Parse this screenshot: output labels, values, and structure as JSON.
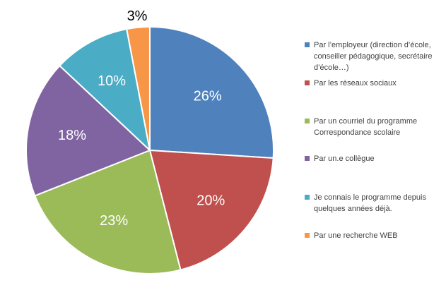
{
  "chart_data": {
    "type": "pie",
    "categories": [
      "Par l’employeur (direction d’école, conseiller pédagogique, secrétaire d’école…)",
      "Par les réseaux sociaux",
      "Par un courriel du programme Correspondance scolaire",
      "Par un.e collègue",
      "Je connais le programme depuis quelques années déjà.",
      "Par une recherche WEB"
    ],
    "values": [
      26,
      20,
      23,
      18,
      10,
      3
    ],
    "labels": [
      "26%",
      "20%",
      "23%",
      "18%",
      "10%",
      "3%"
    ],
    "colors": [
      "#4f81bd",
      "#c0504d",
      "#9bbb59",
      "#8064a2",
      "#4bacc6",
      "#f79646"
    ],
    "legend_position": "right"
  }
}
